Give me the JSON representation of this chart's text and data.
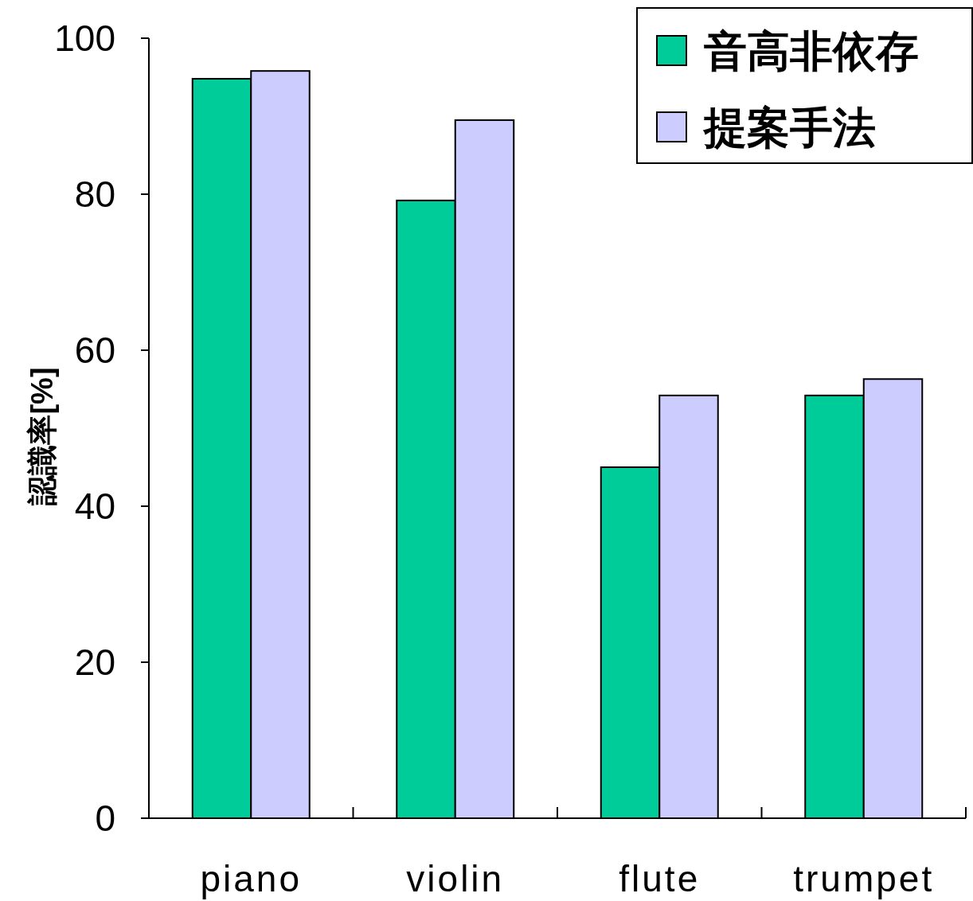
{
  "chart_data": {
    "type": "bar",
    "ylabel": "認識率[%]",
    "categories": [
      "piano",
      "violin",
      "flute",
      "trumpet"
    ],
    "series": [
      {
        "name": "音高非依存",
        "color": "#00cc99",
        "values": [
          94.8,
          79.2,
          45.0,
          54.2
        ]
      },
      {
        "name": "提案手法",
        "color": "#ccccff",
        "values": [
          95.8,
          89.5,
          54.2,
          56.3
        ]
      }
    ],
    "ylim": [
      0,
      100
    ],
    "yticks": [
      0,
      20,
      40,
      60,
      80,
      100
    ],
    "legend": "top right"
  }
}
